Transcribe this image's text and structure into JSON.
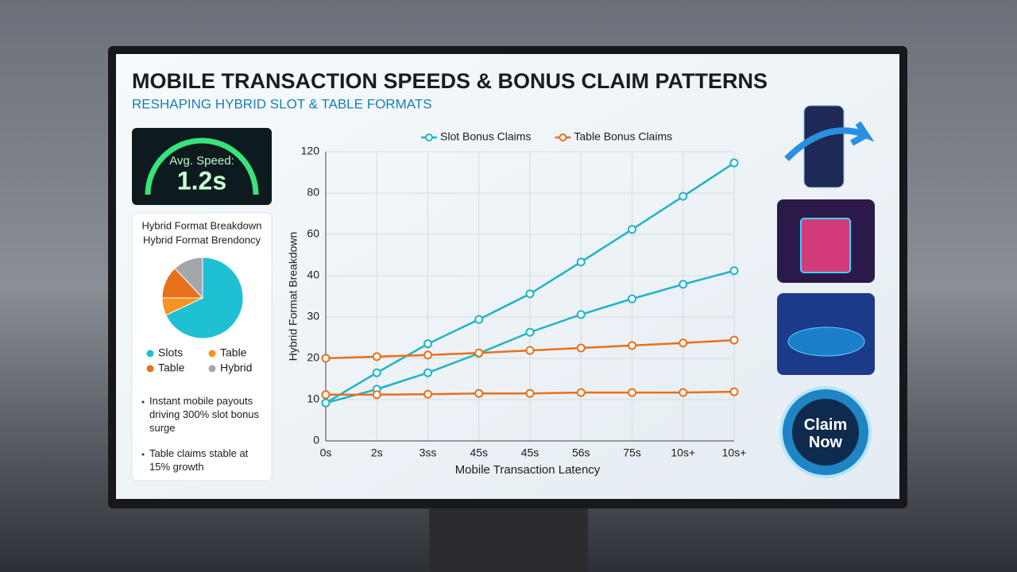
{
  "header": {
    "title": "MOBILE TRANSACTION SPEEDS & BONUS CLAIM PATTERNS",
    "subtitle": "RESHAPING HYBRID SLOT & TABLE FORMATS"
  },
  "speed": {
    "label": "Avg. Speed:",
    "value": "1.2s"
  },
  "breakdown": {
    "title": "Hybrid Format Breakdown",
    "subtitle": "Hybrid Format Brendoncy",
    "chart_data": {
      "type": "pie",
      "categories": [
        "Slots",
        "Table",
        "Table",
        "Hybrid"
      ],
      "values": [
        68,
        7,
        13,
        12
      ],
      "colors": [
        "#1fc0d3",
        "#f7931e",
        "#e8701a",
        "#a3a7ab"
      ]
    }
  },
  "notes": [
    "Instant mobile payouts driving 300% slot bonus surge",
    "Table claims stable at 15% growth"
  ],
  "chart_data": {
    "type": "line",
    "xlabel": "Mobile Transaction Latency",
    "ylabel": "Hybrid Format Breakdown",
    "categories": [
      "0s",
      "2s",
      "3ss",
      "45s",
      "45s",
      "56s",
      "75s",
      "10s+",
      "10s+"
    ],
    "series": [
      {
        "name": "Slot Bonus Claims",
        "color": "#1fb3c8",
        "values": [
          9.2,
          16.5,
          23.5,
          29.4,
          35.6,
          46.6,
          62.4,
          78.4,
          109.2
        ]
      },
      {
        "color": "#1fb3c8",
        "values": [
          9.2,
          12.5,
          16.5,
          21.2,
          26.3,
          30.6,
          34.4,
          37.9,
          42.4
        ]
      },
      {
        "name": "Table Bonus Claims",
        "color": "#e8701a",
        "values": [
          20,
          20.4,
          20.8,
          21.3,
          21.9,
          22.5,
          23.1,
          23.7,
          24.4
        ]
      },
      {
        "color": "#e8701a",
        "values": [
          11.2,
          11.2,
          11.3,
          11.5,
          11.5,
          11.7,
          11.7,
          11.7,
          11.9
        ]
      }
    ],
    "ylim": [
      0,
      120
    ],
    "yticks": [
      0,
      10,
      20,
      30,
      40,
      60,
      80,
      120
    ],
    "grid": true
  },
  "cta": "Claim Now"
}
